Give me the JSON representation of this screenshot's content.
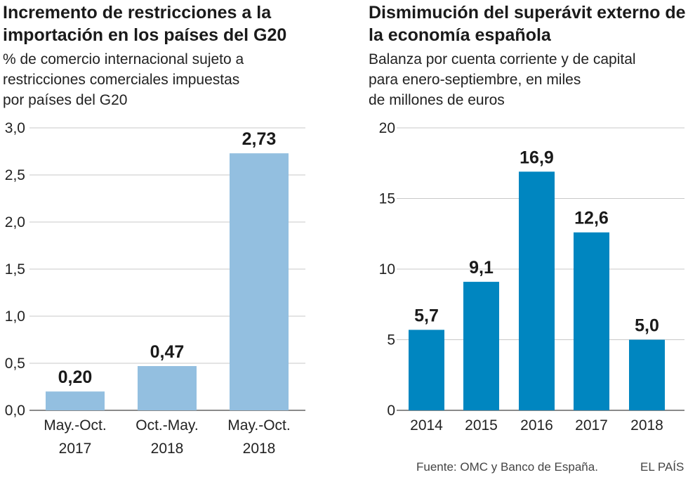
{
  "chart_data": [
    {
      "type": "bar",
      "title": "Incremento de restricciones a la importación en los países del G20",
      "subtitle_lines": [
        "% de comercio internacional sujeto a",
        "restricciones comerciales impuestas",
        "por países del G20"
      ],
      "categories": [
        [
          "May.-Oct.",
          "2017"
        ],
        [
          "Oct.-May.",
          "2018"
        ],
        [
          "May.-Oct.",
          "2018"
        ]
      ],
      "values": [
        0.2,
        0.47,
        2.73
      ],
      "value_labels": [
        "0,20",
        "0,47",
        "2,73"
      ],
      "ylim": [
        0,
        3.0
      ],
      "yticks": [
        0,
        0.5,
        1.0,
        1.5,
        2.0,
        2.5,
        3.0
      ],
      "ytick_labels": [
        "0,0",
        "0,5",
        "1,0",
        "1,5",
        "2,0",
        "2,5",
        "3,0"
      ],
      "color": "#93bfe0",
      "grid": true
    },
    {
      "type": "bar",
      "title": "Dismimución del superávit externo de la economía española",
      "subtitle_lines": [
        "Balanza por cuenta corriente y de capital",
        "para enero-septiembre, en miles",
        "de millones de euros"
      ],
      "categories": [
        "2014",
        "2015",
        "2016",
        "2017",
        "2018"
      ],
      "values": [
        5.7,
        9.1,
        16.9,
        12.6,
        5.0
      ],
      "value_labels": [
        "5,7",
        "9,1",
        "16,9",
        "12,6",
        "5,0"
      ],
      "ylim": [
        0,
        20
      ],
      "yticks": [
        0,
        5,
        10,
        15,
        20
      ],
      "ytick_labels": [
        "0",
        "5",
        "10",
        "15",
        "20"
      ],
      "color": "#0086c0",
      "grid": true
    }
  ],
  "footer": {
    "source": "Fuente: OMC y Banco de España.",
    "brand": "EL PAÍS"
  }
}
